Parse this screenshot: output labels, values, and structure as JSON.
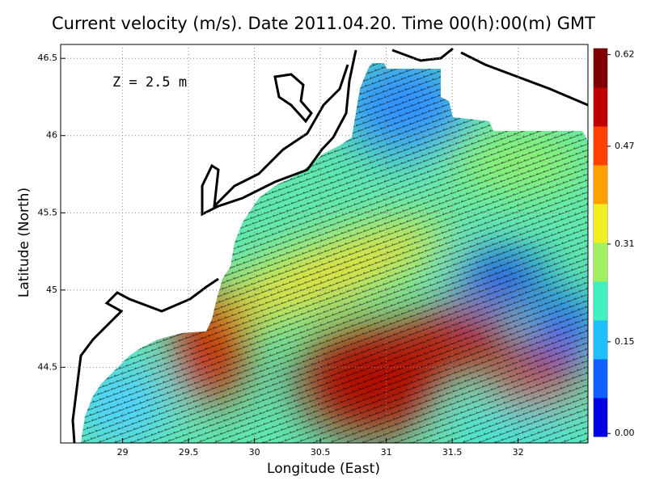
{
  "title": "Current velocity (m/s). Date 2011.04.20. Time 00(h):00(m) GMT",
  "annotation": "Z = 2.5 m",
  "x_axis": {
    "label": "Longitude (East)",
    "lim": [
      28.53,
      32.53
    ],
    "ticks": [
      29,
      29.5,
      30,
      30.5,
      31,
      31.5,
      32
    ]
  },
  "y_axis": {
    "label": "Latitude (North)",
    "lim": [
      44.01,
      46.59
    ],
    "ticks": [
      44.5,
      45,
      45.5,
      46,
      46.5
    ]
  },
  "colorbar": {
    "lim": [
      -0.005,
      0.63
    ],
    "ticks": [
      {
        "value": 0,
        "label": "0.00"
      },
      0.15,
      0.31,
      0.47,
      0.62
    ],
    "colors": [
      "#0000e0",
      "#1060ff",
      "#20c0ff",
      "#40f0c0",
      "#a0f060",
      "#f0f020",
      "#ffa000",
      "#ff4000",
      "#c00000",
      "#800000"
    ]
  }
}
